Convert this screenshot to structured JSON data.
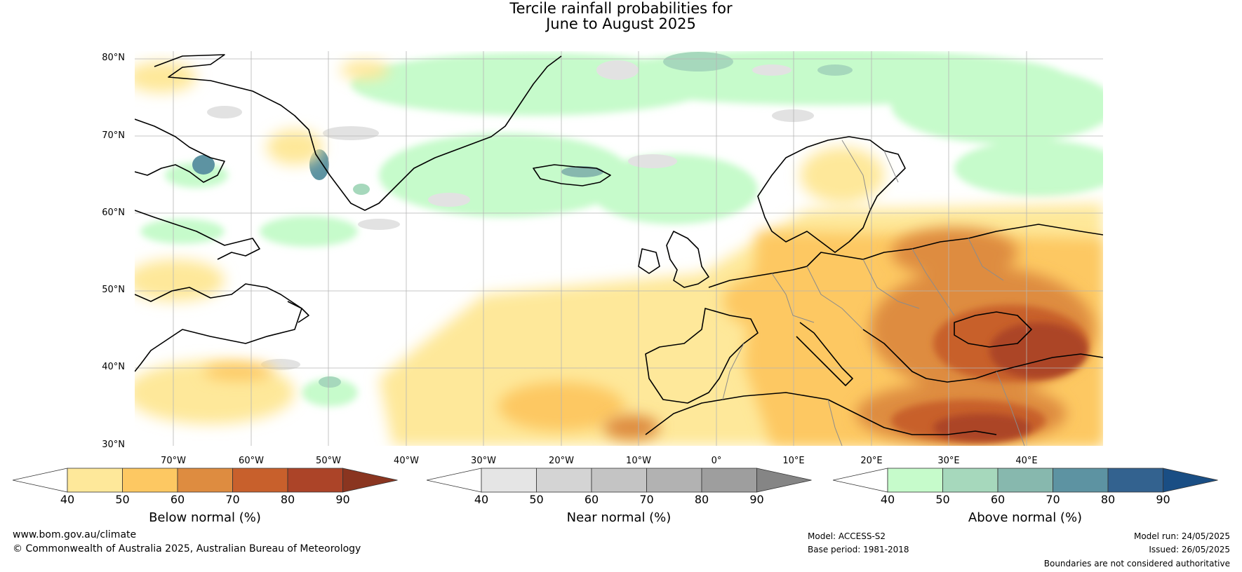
{
  "title_line1": "Tercile rainfall probabilities for",
  "title_line2": "June to August 2025",
  "lat_labels": [
    "80°N",
    "70°N",
    "60°N",
    "50°N",
    "40°N",
    "30°N"
  ],
  "lon_labels": [
    "70°W",
    "60°W",
    "50°W",
    "40°W",
    "30°W",
    "20°W",
    "10°W",
    "0°",
    "10°E",
    "20°E",
    "30°E",
    "40°E"
  ],
  "colorbars": [
    {
      "title": "Below normal (%)",
      "ticks": [
        "40",
        "50",
        "60",
        "70",
        "80",
        "90"
      ],
      "low_color": "#ffffff",
      "colors": [
        "#fee89a",
        "#fdc862",
        "#de8c40",
        "#c8602c",
        "#ac4428"
      ],
      "high_color": "#8a3520"
    },
    {
      "title": "Near normal (%)",
      "ticks": [
        "40",
        "50",
        "60",
        "70",
        "80",
        "90"
      ],
      "low_color": "#ffffff",
      "colors": [
        "#e5e5e5",
        "#d4d4d4",
        "#c4c4c4",
        "#b2b2b2",
        "#9e9e9e"
      ],
      "high_color": "#858585"
    },
    {
      "title": "Above normal (%)",
      "ticks": [
        "40",
        "50",
        "60",
        "70",
        "80",
        "90"
      ],
      "low_color": "#ffffff",
      "colors": [
        "#c6fbcb",
        "#a6d8bc",
        "#87b8ae",
        "#5d93a2",
        "#33628f"
      ],
      "high_color": "#1a4e84"
    }
  ],
  "footer": {
    "website": "www.bom.gov.au/climate",
    "copyright": "© Commonwealth of Australia 2025, Australian Bureau of Meteorology",
    "model": "Model: ACCESS-S2",
    "base_period": "Base period: 1981-2018",
    "model_run": "Model run: 24/05/2025",
    "issued": "Issued: 26/05/2025",
    "disclaimer": "Boundaries are not considered authoritative"
  }
}
